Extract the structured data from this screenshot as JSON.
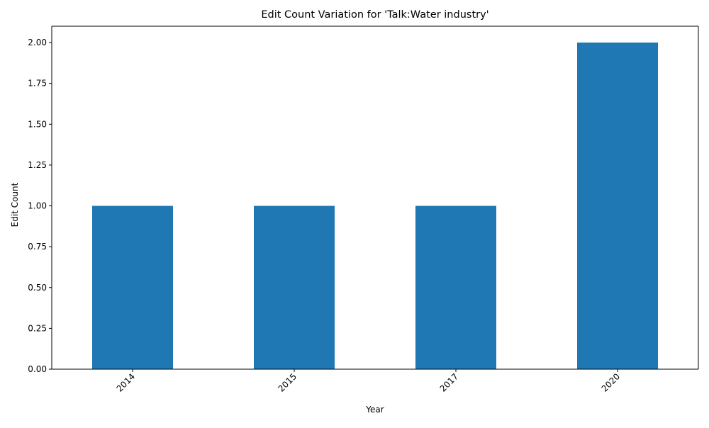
{
  "colors": {
    "bar": "#1f77b4",
    "axis": "#000000",
    "background": "#ffffff"
  },
  "chart_data": {
    "type": "bar",
    "title": "Edit Count Variation for 'Talk:Water industry'",
    "xlabel": "Year",
    "ylabel": "Edit Count",
    "categories": [
      "2014",
      "2015",
      "2017",
      "2020"
    ],
    "values": [
      1,
      1,
      1,
      2
    ],
    "ylim": [
      0,
      2.1
    ],
    "yticks": [
      "0.00",
      "0.25",
      "0.50",
      "0.75",
      "1.00",
      "1.25",
      "1.50",
      "1.75",
      "2.00"
    ],
    "xtick_rotation_deg": 45,
    "grid": false,
    "legend": "none"
  }
}
